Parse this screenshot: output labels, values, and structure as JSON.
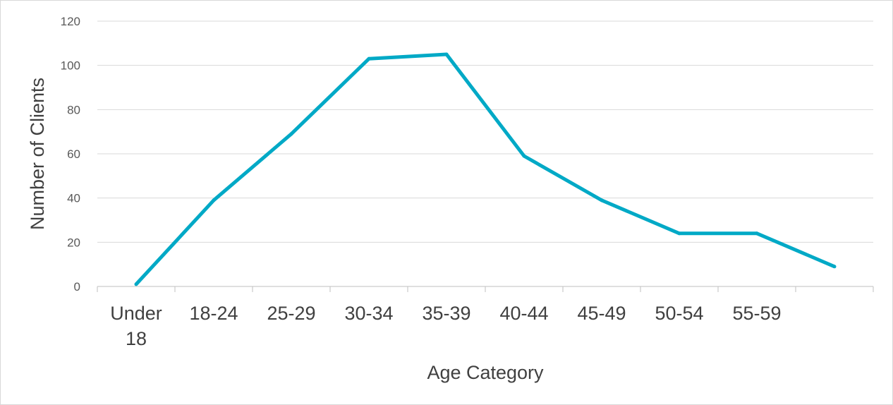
{
  "chart_data": {
    "type": "line",
    "categories": [
      "Under 18",
      "18-24",
      "25-29",
      "30-34",
      "35-39",
      "40-44",
      "45-49",
      "50-54",
      "55-59",
      ""
    ],
    "series": [
      {
        "values": [
          1,
          39,
          69,
          103,
          105,
          59,
          39,
          24,
          24,
          9
        ]
      }
    ],
    "xlabel": "Age Category",
    "ylabel": "Number of Clients",
    "ylim": [
      0,
      120
    ],
    "yticks": [
      0,
      20,
      40,
      60,
      80,
      100,
      120
    ],
    "grid": true,
    "legend": "none",
    "colors": {
      "line": "#00A9C6",
      "grid": "#d9d9d9",
      "axis": "#bfbfbf"
    }
  }
}
